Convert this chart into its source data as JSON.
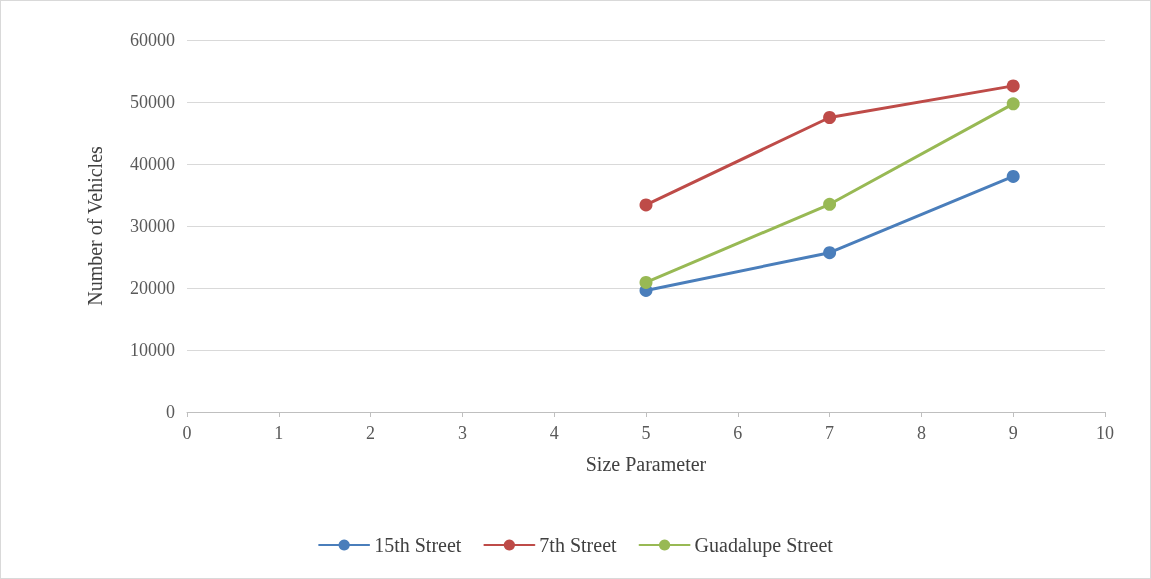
{
  "chart_data": {
    "type": "line",
    "xlabel": "Size Parameter",
    "ylabel": "Number of Vehicles",
    "xlim": [
      0,
      10
    ],
    "xticks": [
      0,
      1,
      2,
      3,
      4,
      5,
      6,
      7,
      8,
      9,
      10
    ],
    "ylim": [
      0,
      60000
    ],
    "yticks": [
      0,
      10000,
      20000,
      30000,
      40000,
      50000,
      60000
    ],
    "grid": "y",
    "legend": "bottom",
    "marker": "circle",
    "line_style": "solid",
    "series": [
      {
        "name": "15th Street",
        "color": "#4a7ebb",
        "x": [
          5,
          7,
          9
        ],
        "values": [
          19600,
          25700,
          38000
        ]
      },
      {
        "name": "7th Street",
        "color": "#be4b48",
        "x": [
          5,
          7,
          9
        ],
        "values": [
          33400,
          47500,
          52600
        ]
      },
      {
        "name": "Guadalupe Street",
        "color": "#98b954",
        "x": [
          5,
          7,
          9
        ],
        "values": [
          20900,
          33500,
          49700
        ]
      }
    ]
  }
}
